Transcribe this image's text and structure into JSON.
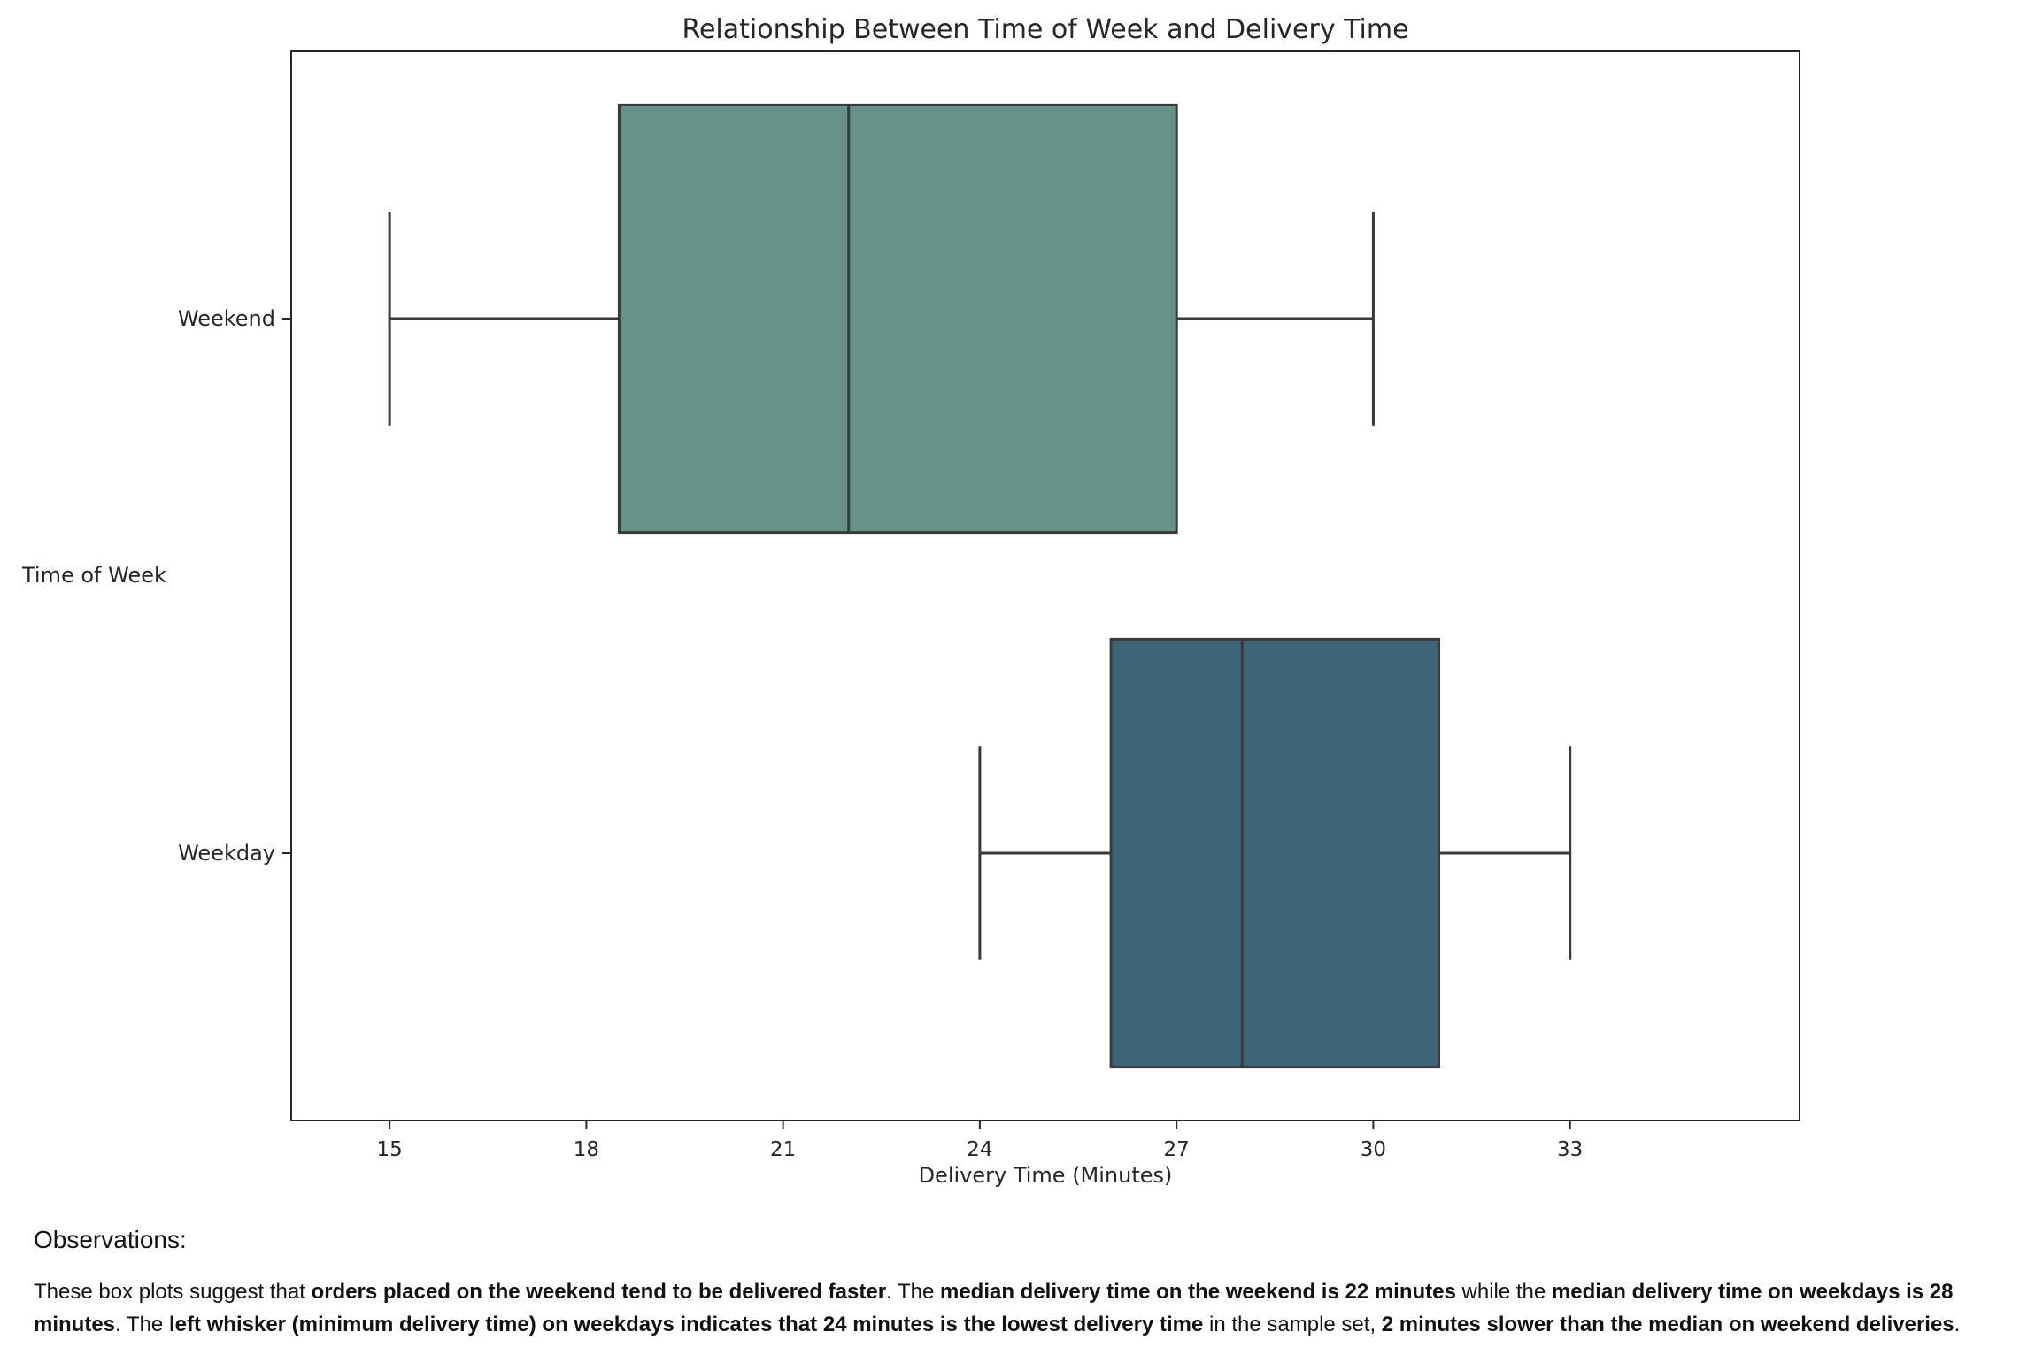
{
  "chart_data": {
    "type": "boxplot",
    "orientation": "horizontal",
    "title": "Relationship Between Time of Week and Delivery Time",
    "xlabel": "Delivery Time (Minutes)",
    "ylabel": "Time of Week",
    "xlim": [
      13.5,
      36.5
    ],
    "xticks": [
      15,
      18,
      21,
      24,
      27,
      30,
      33
    ],
    "categories": [
      "Weekend",
      "Weekday"
    ],
    "boxes": [
      {
        "category": "Weekend",
        "whisker_low": 15,
        "q1": 18.5,
        "median": 22,
        "q3": 27,
        "whisker_high": 30,
        "color": "#67928a"
      },
      {
        "category": "Weekday",
        "whisker_low": 24,
        "q1": 26,
        "median": 28,
        "q3": 31,
        "whisker_high": 33,
        "color": "#3c6678"
      }
    ],
    "grid": false,
    "legend": "none"
  },
  "observations": {
    "heading": "Observations:",
    "segments": [
      {
        "text": "These box plots suggest that ",
        "bold": false
      },
      {
        "text": "orders placed on the weekend tend to be delivered faster",
        "bold": true
      },
      {
        "text": ". The ",
        "bold": false
      },
      {
        "text": "median delivery time on the weekend is 22 minutes",
        "bold": true
      },
      {
        "text": " while the ",
        "bold": false
      },
      {
        "text": "median delivery time on weekdays is 28 minutes",
        "bold": true
      },
      {
        "text": ". The ",
        "bold": false
      },
      {
        "text": "left whisker (minimum delivery time) on weekdays indicates that 24 minutes is the lowest delivery time",
        "bold": true
      },
      {
        "text": " in the sample set, ",
        "bold": false
      },
      {
        "text": "2 minutes slower than the median on weekend deliveries",
        "bold": true
      },
      {
        "text": ".",
        "bold": false
      }
    ]
  },
  "colors": {
    "axis": "#262626",
    "box_edge": "#3a3a3a"
  }
}
